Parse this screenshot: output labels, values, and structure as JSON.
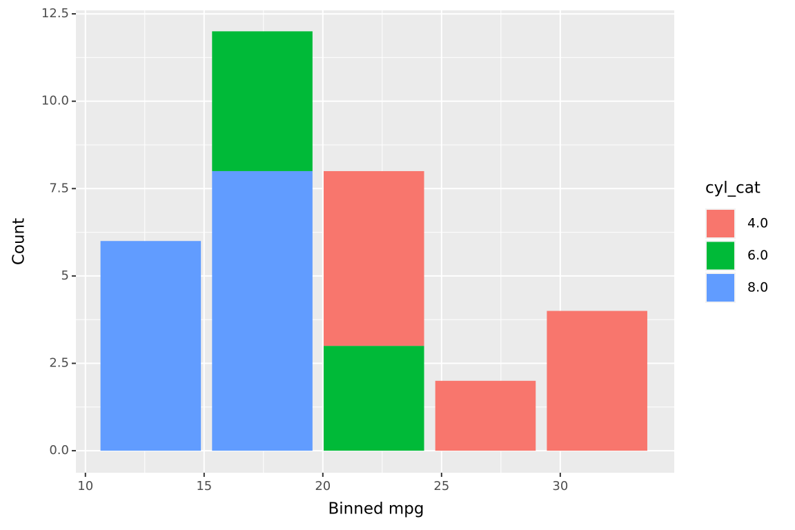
{
  "chart_data": {
    "type": "bar",
    "stacked": true,
    "x_label": "Binned mpg",
    "y_label": "Count",
    "x": [
      12.75,
      17.45,
      22.15,
      26.85,
      31.55
    ],
    "series": [
      {
        "name": "4.0",
        "color": "#F8766D",
        "values": [
          0,
          0,
          5,
          2,
          4
        ]
      },
      {
        "name": "6.0",
        "color": "#00BA38",
        "values": [
          0,
          4,
          3,
          0,
          0
        ]
      },
      {
        "name": "8.0",
        "color": "#619CFF",
        "values": [
          6,
          8,
          0,
          0,
          0
        ]
      }
    ],
    "legend_title": "cyl_cat",
    "legend_position": "right",
    "xlim": [
      9.6,
      34.8
    ],
    "xticks": [
      10,
      15,
      20,
      25,
      30
    ],
    "ylim": [
      -0.63,
      12.6
    ],
    "yticks": [
      {
        "value": 0,
        "label": "0.0"
      },
      2.5,
      5,
      7.5,
      {
        "value": 10,
        "label": "10.0"
      },
      12.5
    ],
    "grid": true,
    "panel_color": "#EBEBEB"
  }
}
